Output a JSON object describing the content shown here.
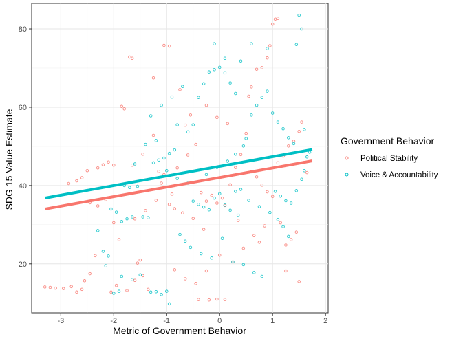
{
  "chart_data": {
    "type": "scatter",
    "title": "",
    "xlabel": "Metric of Government Behavior",
    "ylabel": "SDG 15 Value Estimate",
    "xlim": [
      -3.55,
      2.05
    ],
    "ylim": [
      7.5,
      86.5
    ],
    "x_ticks": [
      -3,
      -2,
      -1,
      0,
      1,
      2
    ],
    "y_ticks": [
      20,
      40,
      60,
      80
    ],
    "x_tick_labels": [
      "-3",
      "-2",
      "-1",
      "0",
      "1",
      "2"
    ],
    "y_tick_labels": [
      "20",
      "40",
      "60",
      "80"
    ],
    "grid": true,
    "legend": {
      "title": "Government Behavior",
      "position": "right"
    },
    "series": [
      {
        "name": "Political Stability",
        "color": "#F8766D",
        "trend": {
          "x": [
            -3.3,
            1.75
          ],
          "y": [
            34.0,
            46.3
          ]
        },
        "points": [
          [
            -3.3,
            14.1
          ],
          [
            -3.2,
            14.0
          ],
          [
            -3.1,
            13.8
          ],
          [
            -2.95,
            13.7
          ],
          [
            -2.8,
            14.2
          ],
          [
            -2.7,
            12.8
          ],
          [
            -2.6,
            13.5
          ],
          [
            -2.55,
            15.7
          ],
          [
            -2.45,
            17.5
          ],
          [
            -2.35,
            22.1
          ],
          [
            -2.85,
            40.5
          ],
          [
            -2.7,
            41.2
          ],
          [
            -2.6,
            42.0
          ],
          [
            -2.5,
            43.8
          ],
          [
            -2.3,
            44.5
          ],
          [
            -2.2,
            45.3
          ],
          [
            -2.1,
            46.0
          ],
          [
            -2.0,
            45.2
          ],
          [
            -2.45,
            35.6
          ],
          [
            -2.3,
            34.8
          ],
          [
            -2.15,
            36.4
          ],
          [
            -2.0,
            30.5
          ],
          [
            -1.9,
            26.2
          ],
          [
            -1.85,
            60.2
          ],
          [
            -1.8,
            59.6
          ],
          [
            -1.7,
            72.8
          ],
          [
            -1.65,
            72.5
          ],
          [
            -1.55,
            20.2
          ],
          [
            -1.45,
            17.0
          ],
          [
            -1.35,
            13.5
          ],
          [
            -1.25,
            67.5
          ],
          [
            -1.15,
            43.6
          ],
          [
            -1.05,
            42.8
          ],
          [
            -0.95,
            35.2
          ],
          [
            -0.85,
            34.1
          ],
          [
            -1.05,
            75.8
          ],
          [
            -0.95,
            75.6
          ],
          [
            -0.75,
            64.5
          ],
          [
            -0.65,
            55.4
          ],
          [
            -0.55,
            58.0
          ],
          [
            -0.45,
            50.5
          ],
          [
            -0.35,
            38.2
          ],
          [
            -0.25,
            36.0
          ],
          [
            -0.15,
            37.5
          ],
          [
            -0.05,
            35.5
          ],
          [
            0.05,
            36.8
          ],
          [
            0.1,
            34.9
          ],
          [
            0.2,
            40.2
          ],
          [
            0.3,
            44.6
          ],
          [
            0.4,
            47.9
          ],
          [
            -0.4,
            10.9
          ],
          [
            -0.2,
            10.8
          ],
          [
            -0.05,
            11.0
          ],
          [
            0.1,
            10.9
          ],
          [
            0.0,
            22.2
          ],
          [
            -0.3,
            28.8
          ],
          [
            -0.5,
            31.6
          ],
          [
            -0.7,
            33.0
          ],
          [
            -0.9,
            37.8
          ],
          [
            -1.1,
            40.6
          ],
          [
            0.5,
            53.3
          ],
          [
            0.55,
            62.8
          ],
          [
            0.6,
            65.2
          ],
          [
            0.7,
            69.7
          ],
          [
            0.8,
            70.1
          ],
          [
            0.9,
            72.6
          ],
          [
            0.95,
            75.7
          ],
          [
            1.0,
            81.2
          ],
          [
            1.05,
            82.5
          ],
          [
            1.1,
            82.7
          ],
          [
            0.6,
            43.5
          ],
          [
            0.7,
            42.2
          ],
          [
            0.8,
            40.1
          ],
          [
            0.9,
            38.4
          ],
          [
            1.0,
            37.2
          ],
          [
            1.1,
            45.8
          ],
          [
            1.2,
            47.5
          ],
          [
            1.3,
            50.1
          ],
          [
            1.4,
            51.3
          ],
          [
            1.5,
            53.8
          ],
          [
            1.55,
            56.2
          ],
          [
            1.6,
            45.9
          ],
          [
            1.65,
            43.3
          ],
          [
            1.45,
            28.1
          ],
          [
            1.35,
            26.2
          ],
          [
            1.25,
            24.8
          ],
          [
            1.15,
            30.5
          ],
          [
            0.85,
            29.7
          ],
          [
            0.65,
            27.2
          ],
          [
            0.35,
            31.1
          ],
          [
            -1.6,
            31.5
          ],
          [
            -1.4,
            33.6
          ],
          [
            -1.2,
            36.2
          ],
          [
            -0.8,
            44.5
          ],
          [
            -0.6,
            47.8
          ],
          [
            -2.05,
            12.8
          ],
          [
            -1.95,
            14.5
          ],
          [
            -1.75,
            13.2
          ],
          [
            -1.6,
            15.8
          ],
          [
            -1.5,
            21.0
          ],
          [
            -0.85,
            18.5
          ],
          [
            -0.65,
            16.2
          ],
          [
            -0.45,
            15.0
          ],
          [
            -0.25,
            18.2
          ],
          [
            0.25,
            20.5
          ],
          [
            0.45,
            24.0
          ],
          [
            0.75,
            25.5
          ],
          [
            1.25,
            18.2
          ],
          [
            1.5,
            15.5
          ],
          [
            -1.25,
            52.8
          ],
          [
            -1.45,
            48.0
          ],
          [
            -1.65,
            45.2
          ],
          [
            -0.25,
            60.5
          ],
          [
            -0.05,
            57.4
          ],
          [
            0.15,
            55.8
          ]
        ]
      },
      {
        "name": "Voice & Accountability",
        "color": "#00BFC4",
        "trend": {
          "x": [
            -3.3,
            1.75
          ],
          "y": [
            36.8,
            49.2
          ]
        },
        "points": [
          [
            -2.2,
            23.2
          ],
          [
            -2.1,
            22.0
          ],
          [
            -2.0,
            12.5
          ],
          [
            -1.9,
            13.0
          ],
          [
            -1.8,
            40.0
          ],
          [
            -1.7,
            39.5
          ],
          [
            -1.6,
            45.5
          ],
          [
            -1.55,
            39.8
          ],
          [
            -1.45,
            32.0
          ],
          [
            -1.35,
            31.8
          ],
          [
            -1.3,
            12.8
          ],
          [
            -1.2,
            12.9
          ],
          [
            -1.1,
            12.2
          ],
          [
            -1.0,
            13.0
          ],
          [
            -0.95,
            9.8
          ],
          [
            -1.25,
            45.8
          ],
          [
            -1.15,
            46.5
          ],
          [
            -1.05,
            47.0
          ],
          [
            -0.95,
            48.2
          ],
          [
            -0.85,
            49.1
          ],
          [
            -1.65,
            32.0
          ],
          [
            -1.75,
            31.5
          ],
          [
            -1.85,
            30.8
          ],
          [
            -1.95,
            33.2
          ],
          [
            -2.05,
            34.0
          ],
          [
            -0.6,
            53.7
          ],
          [
            -0.5,
            55.5
          ],
          [
            -0.4,
            62.5
          ],
          [
            -0.3,
            66.0
          ],
          [
            -0.2,
            69.0
          ],
          [
            -0.1,
            69.6
          ],
          [
            0.0,
            70.2
          ],
          [
            0.1,
            68.8
          ],
          [
            0.2,
            66.2
          ],
          [
            0.3,
            63.5
          ],
          [
            -0.5,
            36.0
          ],
          [
            -0.4,
            35.2
          ],
          [
            -0.3,
            34.5
          ],
          [
            -0.2,
            33.8
          ],
          [
            -0.1,
            36.8
          ],
          [
            0.0,
            37.9
          ],
          [
            0.1,
            35.0
          ],
          [
            0.2,
            33.7
          ],
          [
            0.3,
            38.5
          ],
          [
            0.4,
            39.0
          ],
          [
            -0.75,
            27.5
          ],
          [
            -0.65,
            25.8
          ],
          [
            -0.55,
            24.2
          ],
          [
            -0.35,
            22.6
          ],
          [
            -0.15,
            21.5
          ],
          [
            0.05,
            26.5
          ],
          [
            0.25,
            20.5
          ],
          [
            0.45,
            19.8
          ],
          [
            0.65,
            17.8
          ],
          [
            0.8,
            16.8
          ],
          [
            0.5,
            52.0
          ],
          [
            0.6,
            58.0
          ],
          [
            0.7,
            60.5
          ],
          [
            0.8,
            62.5
          ],
          [
            0.9,
            64.1
          ],
          [
            1.0,
            58.5
          ],
          [
            1.1,
            56.2
          ],
          [
            1.2,
            54.5
          ],
          [
            1.3,
            52.2
          ],
          [
            1.4,
            50.7
          ],
          [
            1.05,
            38.5
          ],
          [
            1.15,
            37.3
          ],
          [
            1.25,
            36.1
          ],
          [
            1.35,
            35.5
          ],
          [
            1.45,
            38.7
          ],
          [
            1.55,
            41.6
          ],
          [
            1.6,
            43.8
          ],
          [
            1.65,
            47.3
          ],
          [
            1.7,
            48.5
          ],
          [
            1.6,
            54.3
          ],
          [
            1.5,
            83.5
          ],
          [
            1.55,
            80.0
          ],
          [
            1.45,
            76.0
          ],
          [
            0.9,
            75.0
          ],
          [
            0.6,
            76.2
          ],
          [
            0.4,
            71.8
          ],
          [
            0.1,
            72.5
          ],
          [
            -0.1,
            76.2
          ],
          [
            1.3,
            27.0
          ],
          [
            1.2,
            29.5
          ],
          [
            1.1,
            31.3
          ],
          [
            0.95,
            33.1
          ],
          [
            0.75,
            34.6
          ],
          [
            0.55,
            36.2
          ],
          [
            0.35,
            32.4
          ],
          [
            -1.3,
            57.8
          ],
          [
            -1.1,
            60.5
          ],
          [
            -0.9,
            62.6
          ],
          [
            -0.7,
            65.3
          ],
          [
            -0.8,
            55.5
          ],
          [
            -1.4,
            50.5
          ],
          [
            -1.2,
            51.5
          ],
          [
            -1.0,
            43.8
          ],
          [
            -0.8,
            41.8
          ],
          [
            -0.6,
            40.6
          ],
          [
            -2.3,
            28.5
          ],
          [
            -2.15,
            19.5
          ],
          [
            -1.85,
            16.8
          ],
          [
            -1.65,
            16.0
          ],
          [
            -1.5,
            17.2
          ],
          [
            0.15,
            46.2
          ],
          [
            0.3,
            48.0
          ],
          [
            0.45,
            50.1
          ],
          [
            -0.25,
            42.8
          ],
          [
            -0.05,
            44.6
          ]
        ]
      }
    ]
  }
}
